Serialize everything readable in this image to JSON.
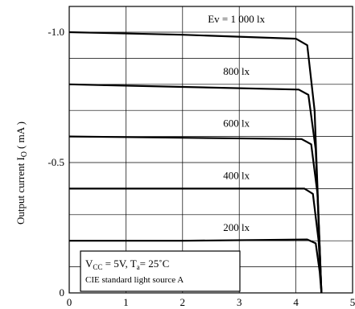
{
  "chart_data": {
    "type": "line",
    "ylabel_main": "Output current I",
    "ylabel_sub": "O",
    "ylabel_unit": "( mA )",
    "x_ticks": [
      "0",
      "1",
      "2",
      "3",
      "4",
      "5"
    ],
    "y_ticks": [
      "-1.0",
      "-0.5",
      "0"
    ],
    "xlim": [
      0,
      5
    ],
    "ylim": [
      0,
      -1.1
    ],
    "grid": true,
    "series": [
      {
        "name": "Ev = 1 000 lx",
        "points": [
          [
            0,
            -1.0
          ],
          [
            2,
            -0.99
          ],
          [
            4.0,
            -0.975
          ],
          [
            4.2,
            -0.95
          ],
          [
            4.33,
            -0.7
          ],
          [
            4.45,
            0
          ]
        ]
      },
      {
        "name": "800 lx",
        "points": [
          [
            0,
            -0.8
          ],
          [
            2,
            -0.79
          ],
          [
            4.05,
            -0.78
          ],
          [
            4.22,
            -0.76
          ],
          [
            4.35,
            -0.55
          ],
          [
            4.45,
            0
          ]
        ]
      },
      {
        "name": "600 lx",
        "points": [
          [
            0,
            -0.6
          ],
          [
            2,
            -0.595
          ],
          [
            4.1,
            -0.59
          ],
          [
            4.27,
            -0.57
          ],
          [
            4.38,
            -0.38
          ],
          [
            4.45,
            0
          ]
        ]
      },
      {
        "name": "400 lx",
        "points": [
          [
            0,
            -0.4
          ],
          [
            2,
            -0.4
          ],
          [
            4.15,
            -0.4
          ],
          [
            4.3,
            -0.38
          ],
          [
            4.4,
            -0.2
          ],
          [
            4.45,
            0
          ]
        ]
      },
      {
        "name": "200 lx",
        "points": [
          [
            0,
            -0.2
          ],
          [
            2,
            -0.2
          ],
          [
            4.2,
            -0.205
          ],
          [
            4.35,
            -0.19
          ],
          [
            4.42,
            -0.08
          ],
          [
            4.45,
            0
          ]
        ]
      }
    ],
    "conditions": {
      "line1_vcc": "V",
      "line1_vcc_sub": "CC",
      "line1_mid": " = 5V, T",
      "line1_ta_sub": "a",
      "line1_end": "=  25˚C",
      "line2": "CIE standard light source A"
    }
  }
}
